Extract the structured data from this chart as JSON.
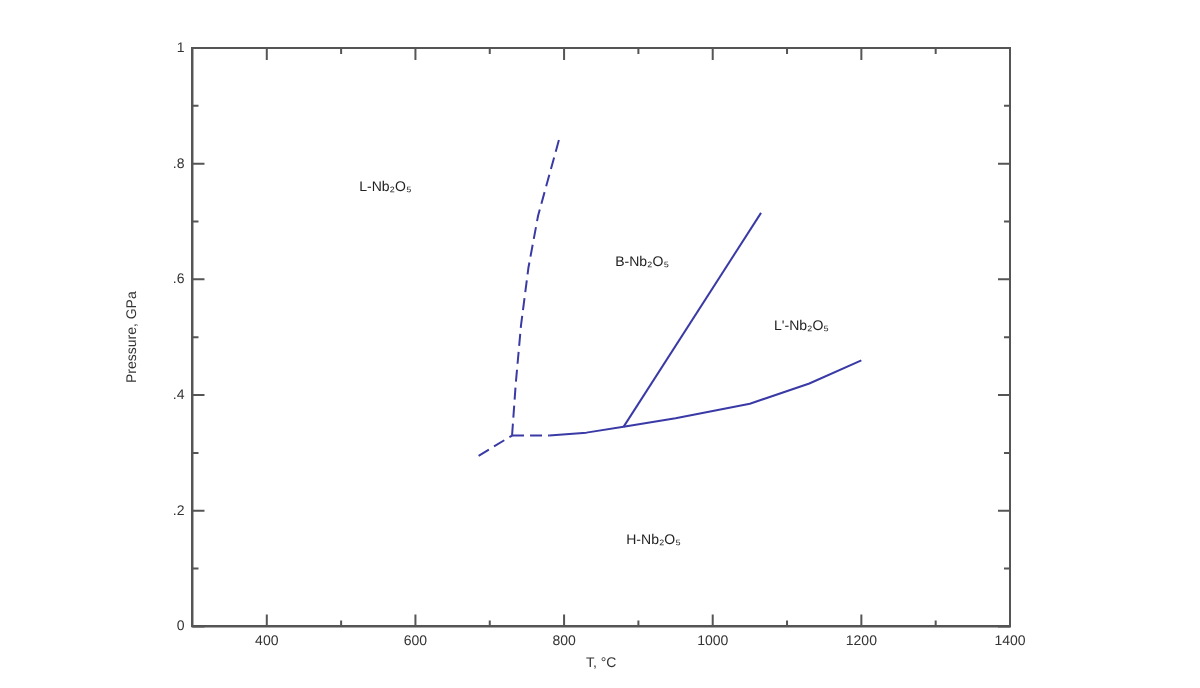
{
  "chart_data": {
    "type": "line",
    "xlabel": "T, °C",
    "ylabel": "Pressure, GPa",
    "xlim": [
      300,
      1400
    ],
    "xticks": [
      {
        "value": 400,
        "label": "400"
      },
      {
        "value": 500,
        "label": null
      },
      {
        "value": 600,
        "label": "600"
      },
      {
        "value": 700,
        "label": null
      },
      {
        "value": 800,
        "label": "800"
      },
      {
        "value": 900,
        "label": null
      },
      {
        "value": 1000,
        "label": "1000"
      },
      {
        "value": 1100,
        "label": null
      },
      {
        "value": 1200,
        "label": "1200"
      },
      {
        "value": 1300,
        "label": null
      },
      {
        "value": 1400,
        "label": "1400"
      }
    ],
    "ylim": [
      0,
      1
    ],
    "yticks": [
      {
        "value": 0,
        "label": "0"
      },
      {
        "value": 0.1,
        "label": null
      },
      {
        "value": 0.2,
        "label": ".2"
      },
      {
        "value": 0.3,
        "label": null
      },
      {
        "value": 0.4,
        "label": ".4"
      },
      {
        "value": 0.5,
        "label": null
      },
      {
        "value": 0.6,
        "label": ".6"
      },
      {
        "value": 0.7,
        "label": null
      },
      {
        "value": 0.8,
        "label": ".8"
      },
      {
        "value": 0.9,
        "label": null
      },
      {
        "value": 1,
        "label": "1"
      }
    ],
    "grid": false,
    "legend": false,
    "marker": "none",
    "series": [
      {
        "color": "#3a3aa6",
        "line_style": "dashed",
        "x": [
          730,
          735,
          742,
          752,
          765,
          780,
          795
        ],
        "values": [
          0.33,
          0.42,
          0.52,
          0.62,
          0.71,
          0.78,
          0.85
        ]
      },
      {
        "color": "#3a3aa6",
        "line_style": "dashed",
        "x": [
          685,
          730
        ],
        "values": [
          0.295,
          0.33
        ]
      },
      {
        "color": "#3a3aa6",
        "line_style": "dashed",
        "x": [
          730,
          780
        ],
        "values": [
          0.33,
          0.33
        ]
      },
      {
        "color": "#3a3aa6",
        "line_style": "solid",
        "x": [
          780,
          830,
          880,
          950,
          1050,
          1130,
          1200
        ],
        "values": [
          0.33,
          0.335,
          0.345,
          0.36,
          0.385,
          0.42,
          0.46
        ]
      },
      {
        "color": "#3a3aa6",
        "line_style": "solid",
        "x": [
          880,
          1065
        ],
        "values": [
          0.345,
          0.715
        ]
      }
    ],
    "annotations": [
      "L-Nb₂O₅",
      "B-Nb₂O₅",
      "L'-Nb₂O₅",
      "H-Nb₂O₅"
    ]
  }
}
